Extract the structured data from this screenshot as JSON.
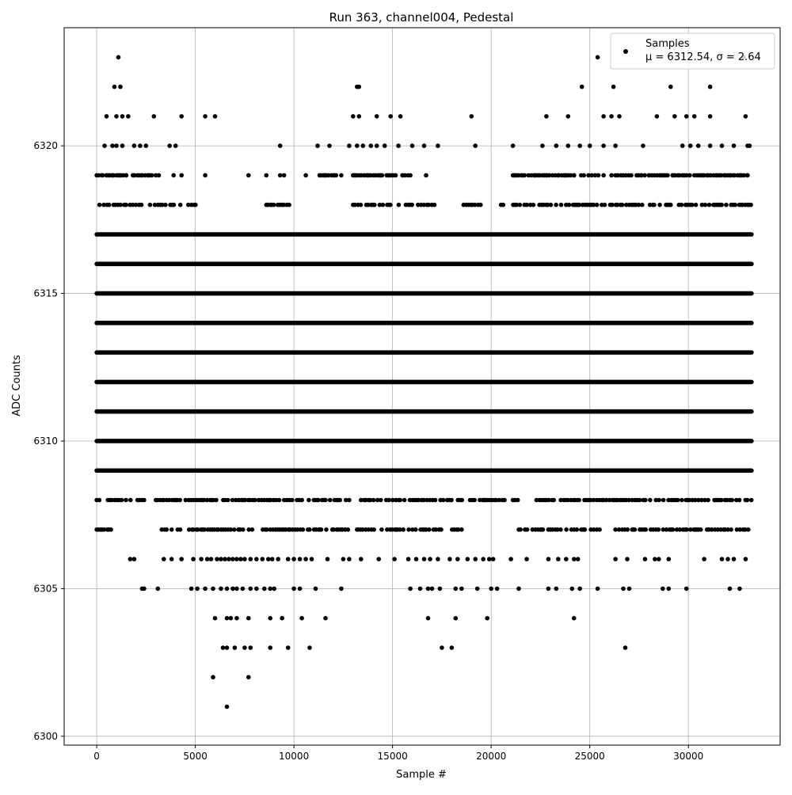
{
  "chart_data": {
    "type": "scatter",
    "title": "Run 363, channel004, Pedestal",
    "xlabel": "Sample #",
    "ylabel": "ADC Counts",
    "xlim": [
      -1650,
      34650
    ],
    "ylim": [
      6299.7,
      6324.0
    ],
    "xticks": [
      0,
      5000,
      10000,
      15000,
      20000,
      25000,
      30000
    ],
    "xtick_labels": [
      "0",
      "5000",
      "10000",
      "15000",
      "20000",
      "25000",
      "30000"
    ],
    "yticks": [
      6300,
      6305,
      6310,
      6315,
      6320
    ],
    "ytick_labels": [
      "6300",
      "6305",
      "6310",
      "6315",
      "6320"
    ],
    "grid": true,
    "legend_position": "top-right",
    "marker_color": "#000000",
    "series": [
      {
        "name": "Samples",
        "stats_label": "μ = 6312.54, σ = 2.64",
        "n_samples": 33200,
        "dense_levels": [
          {
            "y": 6309,
            "x_range": [
              0,
              33200
            ]
          },
          {
            "y": 6310,
            "x_range": [
              0,
              33200
            ]
          },
          {
            "y": 6311,
            "x_range": [
              0,
              33200
            ]
          },
          {
            "y": 6312,
            "x_range": [
              0,
              33200
            ]
          },
          {
            "y": 6313,
            "x_range": [
              0,
              33200
            ]
          },
          {
            "y": 6314,
            "x_range": [
              0,
              33200
            ]
          },
          {
            "y": 6315,
            "x_range": [
              0,
              33200
            ]
          },
          {
            "y": 6316,
            "x_range": [
              0,
              33200
            ]
          },
          {
            "y": 6317,
            "x_range": [
              0,
              33200
            ]
          }
        ],
        "partial_levels": [
          {
            "y": 6308,
            "segments": [
              [
                0,
                2500
              ],
              [
                3000,
                12800
              ],
              [
                13400,
                21400
              ],
              [
                22300,
                33200
              ]
            ]
          },
          {
            "y": 6318,
            "segments": [
              [
                0,
                5200
              ],
              [
                8600,
                9800
              ],
              [
                13000,
                17200
              ],
              [
                18600,
                19500
              ],
              [
                20500,
                33200
              ]
            ]
          },
          {
            "y": 6307,
            "segments": [
              [
                0,
                900
              ],
              [
                3300,
                9800
              ],
              [
                9800,
                12800
              ],
              [
                13200,
                18700
              ],
              [
                21400,
                25500
              ],
              [
                26300,
                33100
              ]
            ]
          },
          {
            "y": 6319,
            "segments": [
              [
                0,
                3200
              ],
              [
                11200,
                12200
              ],
              [
                13000,
                16000
              ],
              [
                21000,
                25600
              ],
              [
                26300,
                33100
              ]
            ]
          }
        ],
        "points": [
          [
            100,
            6319
          ],
          [
            300,
            6319
          ],
          [
            500,
            6319
          ],
          [
            800,
            6319
          ],
          [
            1100,
            6319
          ],
          [
            1500,
            6319
          ],
          [
            1900,
            6319
          ],
          [
            2300,
            6319
          ],
          [
            2600,
            6319
          ],
          [
            3000,
            6319
          ],
          [
            3900,
            6319
          ],
          [
            4300,
            6319
          ],
          [
            5500,
            6319
          ],
          [
            7700,
            6319
          ],
          [
            8600,
            6319
          ],
          [
            9300,
            6319
          ],
          [
            9500,
            6319
          ],
          [
            10600,
            6319
          ],
          [
            11300,
            6319
          ],
          [
            11600,
            6319
          ],
          [
            12000,
            6319
          ],
          [
            12400,
            6319
          ],
          [
            13100,
            6319
          ],
          [
            13800,
            6319
          ],
          [
            14400,
            6319
          ],
          [
            14800,
            6319
          ],
          [
            15500,
            6319
          ],
          [
            15900,
            6319
          ],
          [
            16700,
            6319
          ],
          [
            21200,
            6319
          ],
          [
            21600,
            6319
          ],
          [
            22200,
            6319
          ],
          [
            22800,
            6319
          ],
          [
            23400,
            6319
          ],
          [
            23800,
            6319
          ],
          [
            24200,
            6319
          ],
          [
            24700,
            6319
          ],
          [
            25100,
            6319
          ],
          [
            25700,
            6319
          ],
          [
            26100,
            6319
          ],
          [
            27100,
            6319
          ],
          [
            27600,
            6319
          ],
          [
            28000,
            6319
          ],
          [
            28800,
            6319
          ],
          [
            29200,
            6319
          ],
          [
            29800,
            6319
          ],
          [
            30300,
            6319
          ],
          [
            30800,
            6319
          ],
          [
            31400,
            6319
          ],
          [
            32100,
            6319
          ],
          [
            32600,
            6319
          ],
          [
            33000,
            6319
          ],
          [
            400,
            6320
          ],
          [
            800,
            6320
          ],
          [
            1000,
            6320
          ],
          [
            1300,
            6320
          ],
          [
            1900,
            6320
          ],
          [
            2200,
            6320
          ],
          [
            2500,
            6320
          ],
          [
            3700,
            6320
          ],
          [
            4000,
            6320
          ],
          [
            9300,
            6320
          ],
          [
            11200,
            6320
          ],
          [
            11800,
            6320
          ],
          [
            12800,
            6320
          ],
          [
            13200,
            6320
          ],
          [
            13500,
            6320
          ],
          [
            13900,
            6320
          ],
          [
            14200,
            6320
          ],
          [
            14600,
            6320
          ],
          [
            15300,
            6320
          ],
          [
            16000,
            6320
          ],
          [
            16600,
            6320
          ],
          [
            17300,
            6320
          ],
          [
            19200,
            6320
          ],
          [
            21100,
            6320
          ],
          [
            22600,
            6320
          ],
          [
            23300,
            6320
          ],
          [
            23900,
            6320
          ],
          [
            24500,
            6320
          ],
          [
            25000,
            6320
          ],
          [
            25700,
            6320
          ],
          [
            26300,
            6320
          ],
          [
            27700,
            6320
          ],
          [
            29700,
            6320
          ],
          [
            30100,
            6320
          ],
          [
            30500,
            6320
          ],
          [
            31100,
            6320
          ],
          [
            31700,
            6320
          ],
          [
            32300,
            6320
          ],
          [
            33000,
            6320
          ],
          [
            33100,
            6320
          ],
          [
            500,
            6321
          ],
          [
            1000,
            6321
          ],
          [
            1300,
            6321
          ],
          [
            1600,
            6321
          ],
          [
            2900,
            6321
          ],
          [
            4300,
            6321
          ],
          [
            5500,
            6321
          ],
          [
            6000,
            6321
          ],
          [
            13000,
            6321
          ],
          [
            13300,
            6321
          ],
          [
            14200,
            6321
          ],
          [
            14900,
            6321
          ],
          [
            15400,
            6321
          ],
          [
            19000,
            6321
          ],
          [
            22800,
            6321
          ],
          [
            23900,
            6321
          ],
          [
            25700,
            6321
          ],
          [
            26100,
            6321
          ],
          [
            26500,
            6321
          ],
          [
            28400,
            6321
          ],
          [
            29300,
            6321
          ],
          [
            29900,
            6321
          ],
          [
            30300,
            6321
          ],
          [
            31100,
            6321
          ],
          [
            32900,
            6321
          ],
          [
            900,
            6322
          ],
          [
            1200,
            6322
          ],
          [
            13200,
            6322
          ],
          [
            13300,
            6322
          ],
          [
            24600,
            6322
          ],
          [
            26200,
            6322
          ],
          [
            29100,
            6322
          ],
          [
            31100,
            6322
          ],
          [
            1100,
            6323
          ],
          [
            25400,
            6323
          ],
          [
            32800,
            6323
          ],
          [
            1700,
            6306
          ],
          [
            1900,
            6306
          ],
          [
            3400,
            6306
          ],
          [
            3800,
            6306
          ],
          [
            4300,
            6306
          ],
          [
            4900,
            6306
          ],
          [
            5300,
            6306
          ],
          [
            5600,
            6306
          ],
          [
            5800,
            6306
          ],
          [
            6100,
            6306
          ],
          [
            6300,
            6306
          ],
          [
            6500,
            6306
          ],
          [
            6700,
            6306
          ],
          [
            6900,
            6306
          ],
          [
            7100,
            6306
          ],
          [
            7300,
            6306
          ],
          [
            7500,
            6306
          ],
          [
            7800,
            6306
          ],
          [
            8100,
            6306
          ],
          [
            8400,
            6306
          ],
          [
            8700,
            6306
          ],
          [
            8900,
            6306
          ],
          [
            9200,
            6306
          ],
          [
            9700,
            6306
          ],
          [
            10000,
            6306
          ],
          [
            10300,
            6306
          ],
          [
            10600,
            6306
          ],
          [
            10900,
            6306
          ],
          [
            11700,
            6306
          ],
          [
            12500,
            6306
          ],
          [
            12800,
            6306
          ],
          [
            13400,
            6306
          ],
          [
            14300,
            6306
          ],
          [
            15100,
            6306
          ],
          [
            15800,
            6306
          ],
          [
            16200,
            6306
          ],
          [
            16600,
            6306
          ],
          [
            16900,
            6306
          ],
          [
            17300,
            6306
          ],
          [
            17900,
            6306
          ],
          [
            18300,
            6306
          ],
          [
            18800,
            6306
          ],
          [
            19200,
            6306
          ],
          [
            19600,
            6306
          ],
          [
            19900,
            6306
          ],
          [
            20100,
            6306
          ],
          [
            21000,
            6306
          ],
          [
            21800,
            6306
          ],
          [
            22900,
            6306
          ],
          [
            23400,
            6306
          ],
          [
            23800,
            6306
          ],
          [
            24200,
            6306
          ],
          [
            24400,
            6306
          ],
          [
            26300,
            6306
          ],
          [
            26900,
            6306
          ],
          [
            27800,
            6306
          ],
          [
            28300,
            6306
          ],
          [
            28500,
            6306
          ],
          [
            29000,
            6306
          ],
          [
            30800,
            6306
          ],
          [
            31700,
            6306
          ],
          [
            32000,
            6306
          ],
          [
            32300,
            6306
          ],
          [
            32900,
            6306
          ],
          [
            2300,
            6305
          ],
          [
            2400,
            6305
          ],
          [
            3100,
            6305
          ],
          [
            4800,
            6305
          ],
          [
            5100,
            6305
          ],
          [
            5500,
            6305
          ],
          [
            5900,
            6305
          ],
          [
            6300,
            6305
          ],
          [
            6600,
            6305
          ],
          [
            6900,
            6305
          ],
          [
            7100,
            6305
          ],
          [
            7400,
            6305
          ],
          [
            7800,
            6305
          ],
          [
            8100,
            6305
          ],
          [
            8500,
            6305
          ],
          [
            8800,
            6305
          ],
          [
            9000,
            6305
          ],
          [
            10000,
            6305
          ],
          [
            10300,
            6305
          ],
          [
            11100,
            6305
          ],
          [
            12400,
            6305
          ],
          [
            15900,
            6305
          ],
          [
            16400,
            6305
          ],
          [
            16800,
            6305
          ],
          [
            17000,
            6305
          ],
          [
            17400,
            6305
          ],
          [
            18200,
            6305
          ],
          [
            18500,
            6305
          ],
          [
            19300,
            6305
          ],
          [
            20000,
            6305
          ],
          [
            20300,
            6305
          ],
          [
            21400,
            6305
          ],
          [
            22900,
            6305
          ],
          [
            23300,
            6305
          ],
          [
            24100,
            6305
          ],
          [
            24500,
            6305
          ],
          [
            25400,
            6305
          ],
          [
            26700,
            6305
          ],
          [
            27000,
            6305
          ],
          [
            28700,
            6305
          ],
          [
            29000,
            6305
          ],
          [
            29900,
            6305
          ],
          [
            32100,
            6305
          ],
          [
            32600,
            6305
          ],
          [
            6000,
            6304
          ],
          [
            6600,
            6304
          ],
          [
            6800,
            6304
          ],
          [
            7100,
            6304
          ],
          [
            7700,
            6304
          ],
          [
            8800,
            6304
          ],
          [
            9400,
            6304
          ],
          [
            10400,
            6304
          ],
          [
            11600,
            6304
          ],
          [
            16800,
            6304
          ],
          [
            18200,
            6304
          ],
          [
            19800,
            6304
          ],
          [
            24200,
            6304
          ],
          [
            6400,
            6303
          ],
          [
            6600,
            6303
          ],
          [
            7000,
            6303
          ],
          [
            7500,
            6303
          ],
          [
            7800,
            6303
          ],
          [
            8800,
            6303
          ],
          [
            9700,
            6303
          ],
          [
            10800,
            6303
          ],
          [
            17500,
            6303
          ],
          [
            18000,
            6303
          ],
          [
            26800,
            6303
          ],
          [
            5900,
            6302
          ],
          [
            7700,
            6302
          ],
          [
            6600,
            6301
          ]
        ]
      }
    ]
  }
}
